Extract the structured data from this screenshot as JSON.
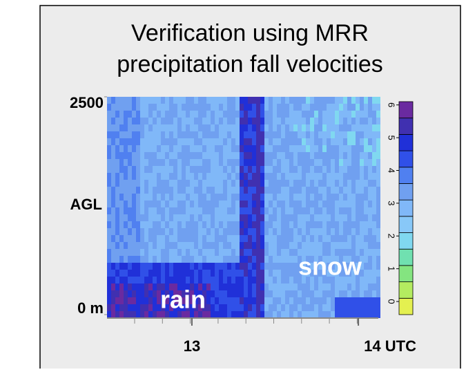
{
  "chart_data": {
    "type": "heatmap",
    "title_lines": [
      "Verification using MRR",
      "precipitation fall velocities"
    ],
    "ylabel": "AGL",
    "ylim": [
      0,
      2500
    ],
    "yticks": [
      {
        "value": 0,
        "label": "0 m"
      },
      {
        "value": 2500,
        "label": "2500"
      }
    ],
    "xlim": [
      12.49,
      14.12
    ],
    "xticks": [
      {
        "value": 13,
        "label": "13"
      },
      {
        "value": 14,
        "label": "14 UTC"
      }
    ],
    "annotations": [
      "rain",
      "snow"
    ],
    "colorbar": {
      "lim": [
        -0.4,
        6.1
      ],
      "ticks": [
        0,
        1,
        2,
        3,
        4,
        5,
        6
      ],
      "colors": [
        "#e4f050",
        "#b4ec60",
        "#84e480",
        "#70e0b0",
        "#80d8f0",
        "#88c8f8",
        "#80b8f8",
        "#70a0f0",
        "#5080f0",
        "#3050e8",
        "#2030d8",
        "#4030b0",
        "#6a2aa0"
      ]
    }
  }
}
